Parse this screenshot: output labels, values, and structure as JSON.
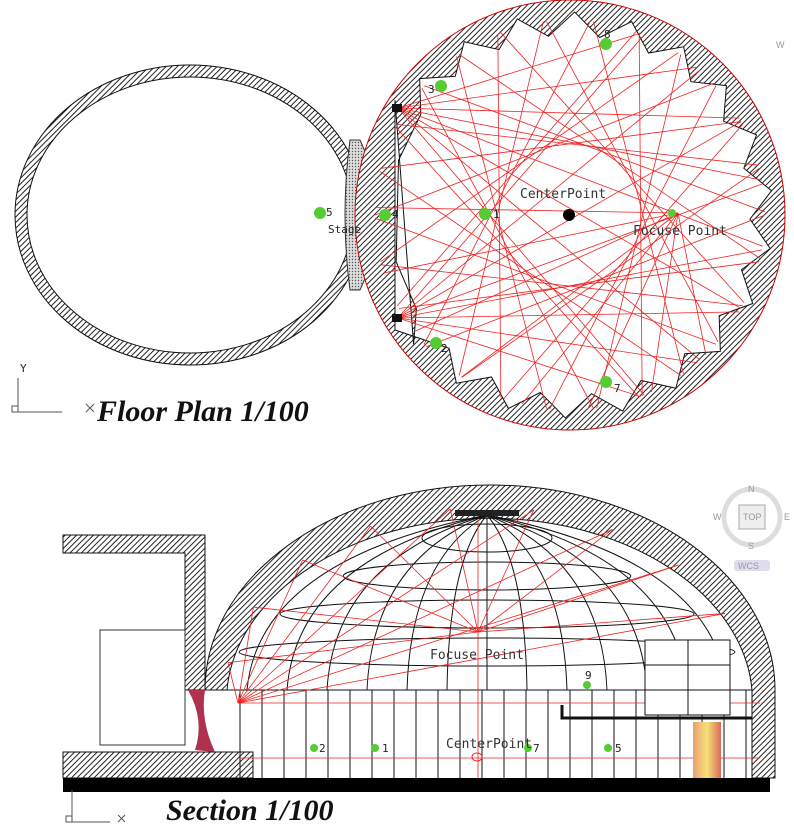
{
  "floor_plan": {
    "title": "Floor Plan 1/100",
    "axis_label": "Y",
    "labels": [
      "8",
      "3",
      "5",
      "Stage",
      "4",
      "1",
      "CenterPoint",
      "Focuse Point",
      "2",
      "7"
    ]
  },
  "section": {
    "title": "Section 1/100",
    "labels": [
      "Focuse Point",
      "CenterPoint",
      "9",
      "2",
      "1",
      "7",
      "5"
    ]
  },
  "viewcube": {
    "north": "N",
    "west": "W",
    "top": "TOP",
    "east": "E",
    "south": "S",
    "wcs": "WCS"
  },
  "corner_fragment": "W"
}
